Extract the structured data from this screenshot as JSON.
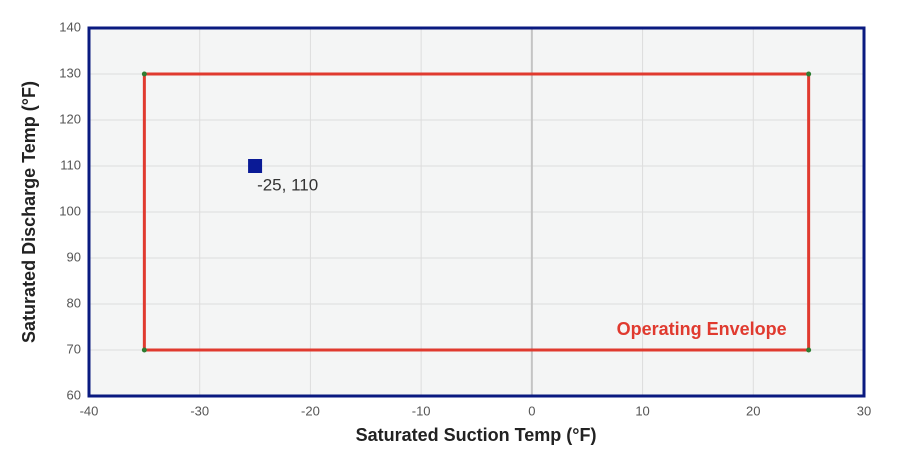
{
  "chart_data": {
    "type": "scatter",
    "xlabel": "Saturated Suction Temp (°F)",
    "ylabel": "Saturated Discharge Temp (°F)",
    "xlim": [
      -40,
      30
    ],
    "ylim": [
      60,
      140
    ],
    "xticks": [
      -40,
      -30,
      -20,
      -10,
      0,
      10,
      20,
      30
    ],
    "yticks": [
      60,
      70,
      80,
      90,
      100,
      110,
      120,
      130,
      140
    ],
    "grid": true,
    "series": [
      {
        "color": "#0a1a96",
        "x": [
          -25
        ],
        "values": [
          110
        ],
        "value_labels": [
          "-25, 110"
        ]
      }
    ],
    "envelope": {
      "label": "Operating Envelope",
      "color": "#e03a2f",
      "vertex_color": "#2e7d32",
      "x": [
        -35,
        -35,
        25,
        25
      ],
      "y": [
        70,
        130,
        130,
        70
      ]
    }
  }
}
